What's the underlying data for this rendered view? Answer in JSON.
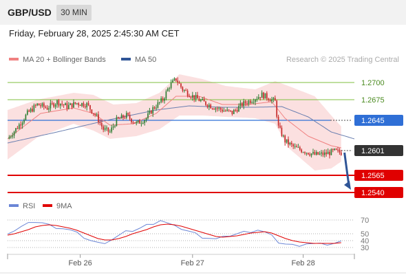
{
  "header": {
    "pair": "GBP/USD",
    "timeframe": "30 MIN",
    "timestamp": "Friday, February 28, 2025 2:45:30 AM CET"
  },
  "legend": {
    "items": [
      {
        "name": "MA 20 + Bollinger Bands",
        "color": "#f08080"
      },
      {
        "name": "MA 50",
        "color": "#2f5597"
      }
    ],
    "credit": "Research © 2025 Trading Central"
  },
  "colors": {
    "resistance": "#7fbf3f",
    "pivot": "#2f6fd6",
    "support": "#e00000",
    "current": "#333333",
    "up_candle": "#2e7d32",
    "down_candle": "#c62828",
    "band_fill": "#fbe0e0",
    "ma20": "#f08080",
    "ma50": "#6a7fb0",
    "rsi": "#6b86d6",
    "rsi_ma": "#e00000",
    "arrow": "#2f5597"
  },
  "chart_data": [
    {
      "type": "candlestick",
      "title": "GBP/USD",
      "x_ticks": [
        "Feb 26",
        "Feb 27",
        "Feb 28"
      ],
      "ylim": [
        1.252,
        1.274
      ],
      "close_path": [
        [
          0,
          1.2618
        ],
        [
          6,
          1.2635
        ],
        [
          12,
          1.2655
        ],
        [
          18,
          1.2668
        ],
        [
          24,
          1.2663
        ],
        [
          30,
          1.2672
        ],
        [
          36,
          1.2665
        ],
        [
          42,
          1.267
        ],
        [
          48,
          1.2668
        ],
        [
          54,
          1.265
        ],
        [
          58,
          1.2632
        ],
        [
          62,
          1.2628
        ],
        [
          66,
          1.2645
        ],
        [
          72,
          1.2652
        ],
        [
          78,
          1.264
        ],
        [
          84,
          1.2648
        ],
        [
          88,
          1.2662
        ],
        [
          94,
          1.2675
        ],
        [
          98,
          1.2695
        ],
        [
          102,
          1.2705
        ],
        [
          106,
          1.269
        ],
        [
          112,
          1.268
        ],
        [
          118,
          1.2672
        ],
        [
          124,
          1.2665
        ],
        [
          130,
          1.266
        ],
        [
          136,
          1.2656
        ],
        [
          142,
          1.2668
        ],
        [
          148,
          1.2675
        ],
        [
          154,
          1.2682
        ],
        [
          158,
          1.2678
        ],
        [
          162,
          1.2672
        ],
        [
          164,
          1.2635
        ],
        [
          168,
          1.2615
        ],
        [
          174,
          1.2605
        ],
        [
          180,
          1.26
        ],
        [
          186,
          1.2595
        ],
        [
          192,
          1.2596
        ],
        [
          198,
          1.26
        ],
        [
          202,
          1.2598
        ]
      ],
      "ma20": [
        [
          0,
          1.2618
        ],
        [
          20,
          1.2655
        ],
        [
          40,
          1.2663
        ],
        [
          52,
          1.2655
        ],
        [
          62,
          1.2638
        ],
        [
          76,
          1.264
        ],
        [
          90,
          1.2655
        ],
        [
          102,
          1.268
        ],
        [
          116,
          1.268
        ],
        [
          130,
          1.2668
        ],
        [
          146,
          1.2668
        ],
        [
          160,
          1.2672
        ],
        [
          168,
          1.2648
        ],
        [
          182,
          1.2622
        ],
        [
          196,
          1.2608
        ],
        [
          202,
          1.2605
        ]
      ],
      "upper_band": [
        [
          0,
          1.266
        ],
        [
          18,
          1.2675
        ],
        [
          40,
          1.2685
        ],
        [
          52,
          1.2682
        ],
        [
          64,
          1.2668
        ],
        [
          78,
          1.267
        ],
        [
          92,
          1.2685
        ],
        [
          104,
          1.2712
        ],
        [
          118,
          1.2705
        ],
        [
          132,
          1.2695
        ],
        [
          150,
          1.269
        ],
        [
          162,
          1.2702
        ],
        [
          170,
          1.2695
        ],
        [
          186,
          1.268
        ],
        [
          196,
          1.2652
        ],
        [
          202,
          1.2636
        ]
      ],
      "lower_band": [
        [
          0,
          1.2588
        ],
        [
          18,
          1.262
        ],
        [
          40,
          1.264
        ],
        [
          52,
          1.263
        ],
        [
          62,
          1.2618
        ],
        [
          78,
          1.2622
        ],
        [
          92,
          1.2632
        ],
        [
          104,
          1.2652
        ],
        [
          118,
          1.2652
        ],
        [
          132,
          1.265
        ],
        [
          150,
          1.2648
        ],
        [
          162,
          1.264
        ],
        [
          170,
          1.2605
        ],
        [
          186,
          1.2572
        ],
        [
          196,
          1.2575
        ],
        [
          202,
          1.2585
        ]
      ],
      "ma50": [
        [
          0,
          1.2612
        ],
        [
          30,
          1.2628
        ],
        [
          60,
          1.2645
        ],
        [
          90,
          1.266
        ],
        [
          110,
          1.2666
        ],
        [
          130,
          1.2664
        ],
        [
          150,
          1.2664
        ],
        [
          166,
          1.2665
        ],
        [
          182,
          1.265
        ],
        [
          196,
          1.2628
        ],
        [
          210,
          1.2618
        ]
      ],
      "levels": [
        {
          "label": "1.2700",
          "value": 1.27,
          "kind": "resistance"
        },
        {
          "label": "1.2675",
          "value": 1.2675,
          "kind": "resistance"
        },
        {
          "label": "1.2645",
          "value": 1.2645,
          "kind": "pivot"
        },
        {
          "label": "1.2601",
          "value": 1.2601,
          "kind": "current"
        },
        {
          "label": "1.2565",
          "value": 1.2565,
          "kind": "support"
        },
        {
          "label": "1.2540",
          "value": 1.254,
          "kind": "support"
        }
      ]
    },
    {
      "type": "line",
      "title": "RSI",
      "series": [
        {
          "name": "RSI",
          "values": [
            52,
            55,
            60,
            64,
            68,
            66,
            62,
            60,
            58,
            55,
            50,
            45,
            40,
            36,
            38,
            42,
            47,
            52,
            55,
            58,
            62,
            66,
            70,
            65,
            60,
            58,
            54,
            50,
            46,
            44,
            42,
            44,
            48,
            50,
            52,
            54,
            56,
            52,
            46,
            38,
            35,
            33,
            34,
            36,
            35,
            34,
            35,
            36,
            38
          ]
        },
        {
          "name": "9MA",
          "values": [
            48,
            50,
            53,
            56,
            60,
            62,
            63,
            62,
            60,
            58,
            55,
            51,
            47,
            43,
            41,
            41,
            43,
            46,
            50,
            53,
            56,
            60,
            63,
            64,
            63,
            61,
            58,
            55,
            52,
            49,
            46,
            45,
            46,
            47,
            49,
            51,
            52,
            53,
            51,
            47,
            43,
            40,
            38,
            37,
            36,
            36,
            36,
            36,
            37
          ]
        }
      ],
      "ylim": [
        20,
        80
      ],
      "y_ticks": [
        "70",
        "50",
        "40",
        "30"
      ]
    }
  ]
}
